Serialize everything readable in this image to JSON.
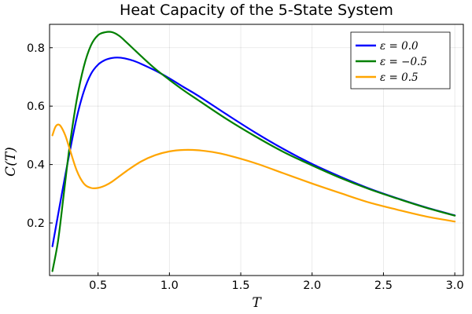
{
  "chart_data": {
    "type": "line",
    "title": "Heat Capacity of the 5-State System",
    "xlabel": "T",
    "ylabel": "C(T)",
    "xlim": [
      0.16,
      3.06
    ],
    "ylim": [
      0.02,
      0.88
    ],
    "x_ticks": [
      0.5,
      1.0,
      1.5,
      2.0,
      2.5,
      3.0
    ],
    "x_tick_labels": [
      "0.5",
      "1.0",
      "1.5",
      "2.0",
      "2.5",
      "3.0"
    ],
    "y_ticks": [
      0.2,
      0.4,
      0.6,
      0.8
    ],
    "y_tick_labels": [
      "0.2",
      "0.4",
      "0.6",
      "0.8"
    ],
    "grid": true,
    "legend_position": "top-right",
    "series": [
      {
        "name": "ε = 0.0",
        "color": "#0000ff",
        "x": [
          0.18,
          0.25,
          0.3,
          0.35,
          0.4,
          0.45,
          0.5,
          0.55,
          0.6,
          0.65,
          0.7,
          0.75,
          0.8,
          0.9,
          1.0,
          1.1,
          1.2,
          1.4,
          1.6,
          1.8,
          2.0,
          2.2,
          2.4,
          2.6,
          2.8,
          3.0
        ],
        "y": [
          0.12,
          0.31,
          0.44,
          0.56,
          0.65,
          0.71,
          0.742,
          0.758,
          0.765,
          0.766,
          0.762,
          0.755,
          0.745,
          0.722,
          0.695,
          0.665,
          0.636,
          0.572,
          0.51,
          0.453,
          0.402,
          0.358,
          0.318,
          0.284,
          0.253,
          0.226
        ]
      },
      {
        "name": "ε = −0.5",
        "color": "#008000",
        "x": [
          0.18,
          0.22,
          0.26,
          0.3,
          0.35,
          0.4,
          0.45,
          0.5,
          0.55,
          0.6,
          0.65,
          0.7,
          0.75,
          0.8,
          0.9,
          1.0,
          1.1,
          1.2,
          1.4,
          1.6,
          1.8,
          2.0,
          2.2,
          2.4,
          2.6,
          2.8,
          3.0
        ],
        "y": [
          0.035,
          0.14,
          0.3,
          0.46,
          0.62,
          0.735,
          0.808,
          0.843,
          0.853,
          0.853,
          0.84,
          0.818,
          0.795,
          0.772,
          0.728,
          0.69,
          0.654,
          0.621,
          0.556,
          0.497,
          0.443,
          0.397,
          0.354,
          0.316,
          0.283,
          0.252,
          0.225
        ]
      },
      {
        "name": "ε = 0.5",
        "color": "#ffa500",
        "x": [
          0.18,
          0.2,
          0.22,
          0.24,
          0.27,
          0.3,
          0.35,
          0.4,
          0.45,
          0.5,
          0.55,
          0.6,
          0.7,
          0.8,
          0.9,
          1.0,
          1.1,
          1.2,
          1.3,
          1.4,
          1.6,
          1.8,
          2.0,
          2.2,
          2.4,
          2.6,
          2.8,
          3.0
        ],
        "y": [
          0.5,
          0.528,
          0.537,
          0.53,
          0.5,
          0.455,
          0.38,
          0.335,
          0.32,
          0.32,
          0.328,
          0.342,
          0.378,
          0.41,
          0.432,
          0.445,
          0.45,
          0.449,
          0.443,
          0.433,
          0.405,
          0.37,
          0.335,
          0.302,
          0.27,
          0.245,
          0.222,
          0.205
        ]
      }
    ]
  }
}
